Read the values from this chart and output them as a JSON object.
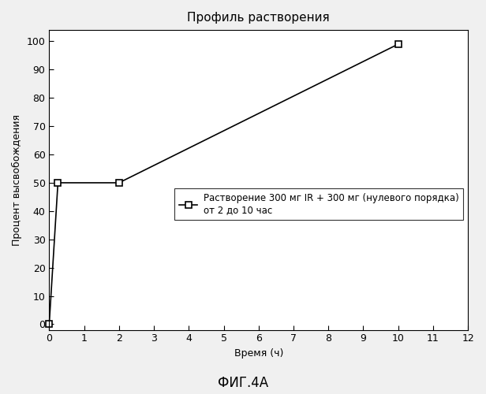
{
  "title": "Профиль растворения",
  "xlabel": "Время (ч)",
  "ylabel": "Процент высвобождения",
  "caption": "ФИГ.4А",
  "x_data": [
    0,
    0.25,
    2,
    10
  ],
  "y_data": [
    0,
    50,
    50,
    99
  ],
  "xlim": [
    0,
    12
  ],
  "ylim": [
    -2,
    104
  ],
  "xticks": [
    0,
    1,
    2,
    3,
    4,
    5,
    6,
    7,
    8,
    9,
    10,
    11,
    12
  ],
  "yticks": [
    0,
    10,
    20,
    30,
    40,
    50,
    60,
    70,
    80,
    90,
    100
  ],
  "legend_label_line1": "Растворение 300 мг IR + 300 мг (нулевого порядка)",
  "legend_label_line2": "от 2 до 10 час",
  "line_color": "#000000",
  "marker": "s",
  "marker_facecolor": "#ffffff",
  "marker_edgecolor": "#000000",
  "marker_size": 6,
  "background_color": "#f0f0f0",
  "plot_bg_color": "#ffffff",
  "title_fontsize": 11,
  "label_fontsize": 9,
  "tick_fontsize": 9,
  "caption_fontsize": 12,
  "legend_fontsize": 8.5
}
